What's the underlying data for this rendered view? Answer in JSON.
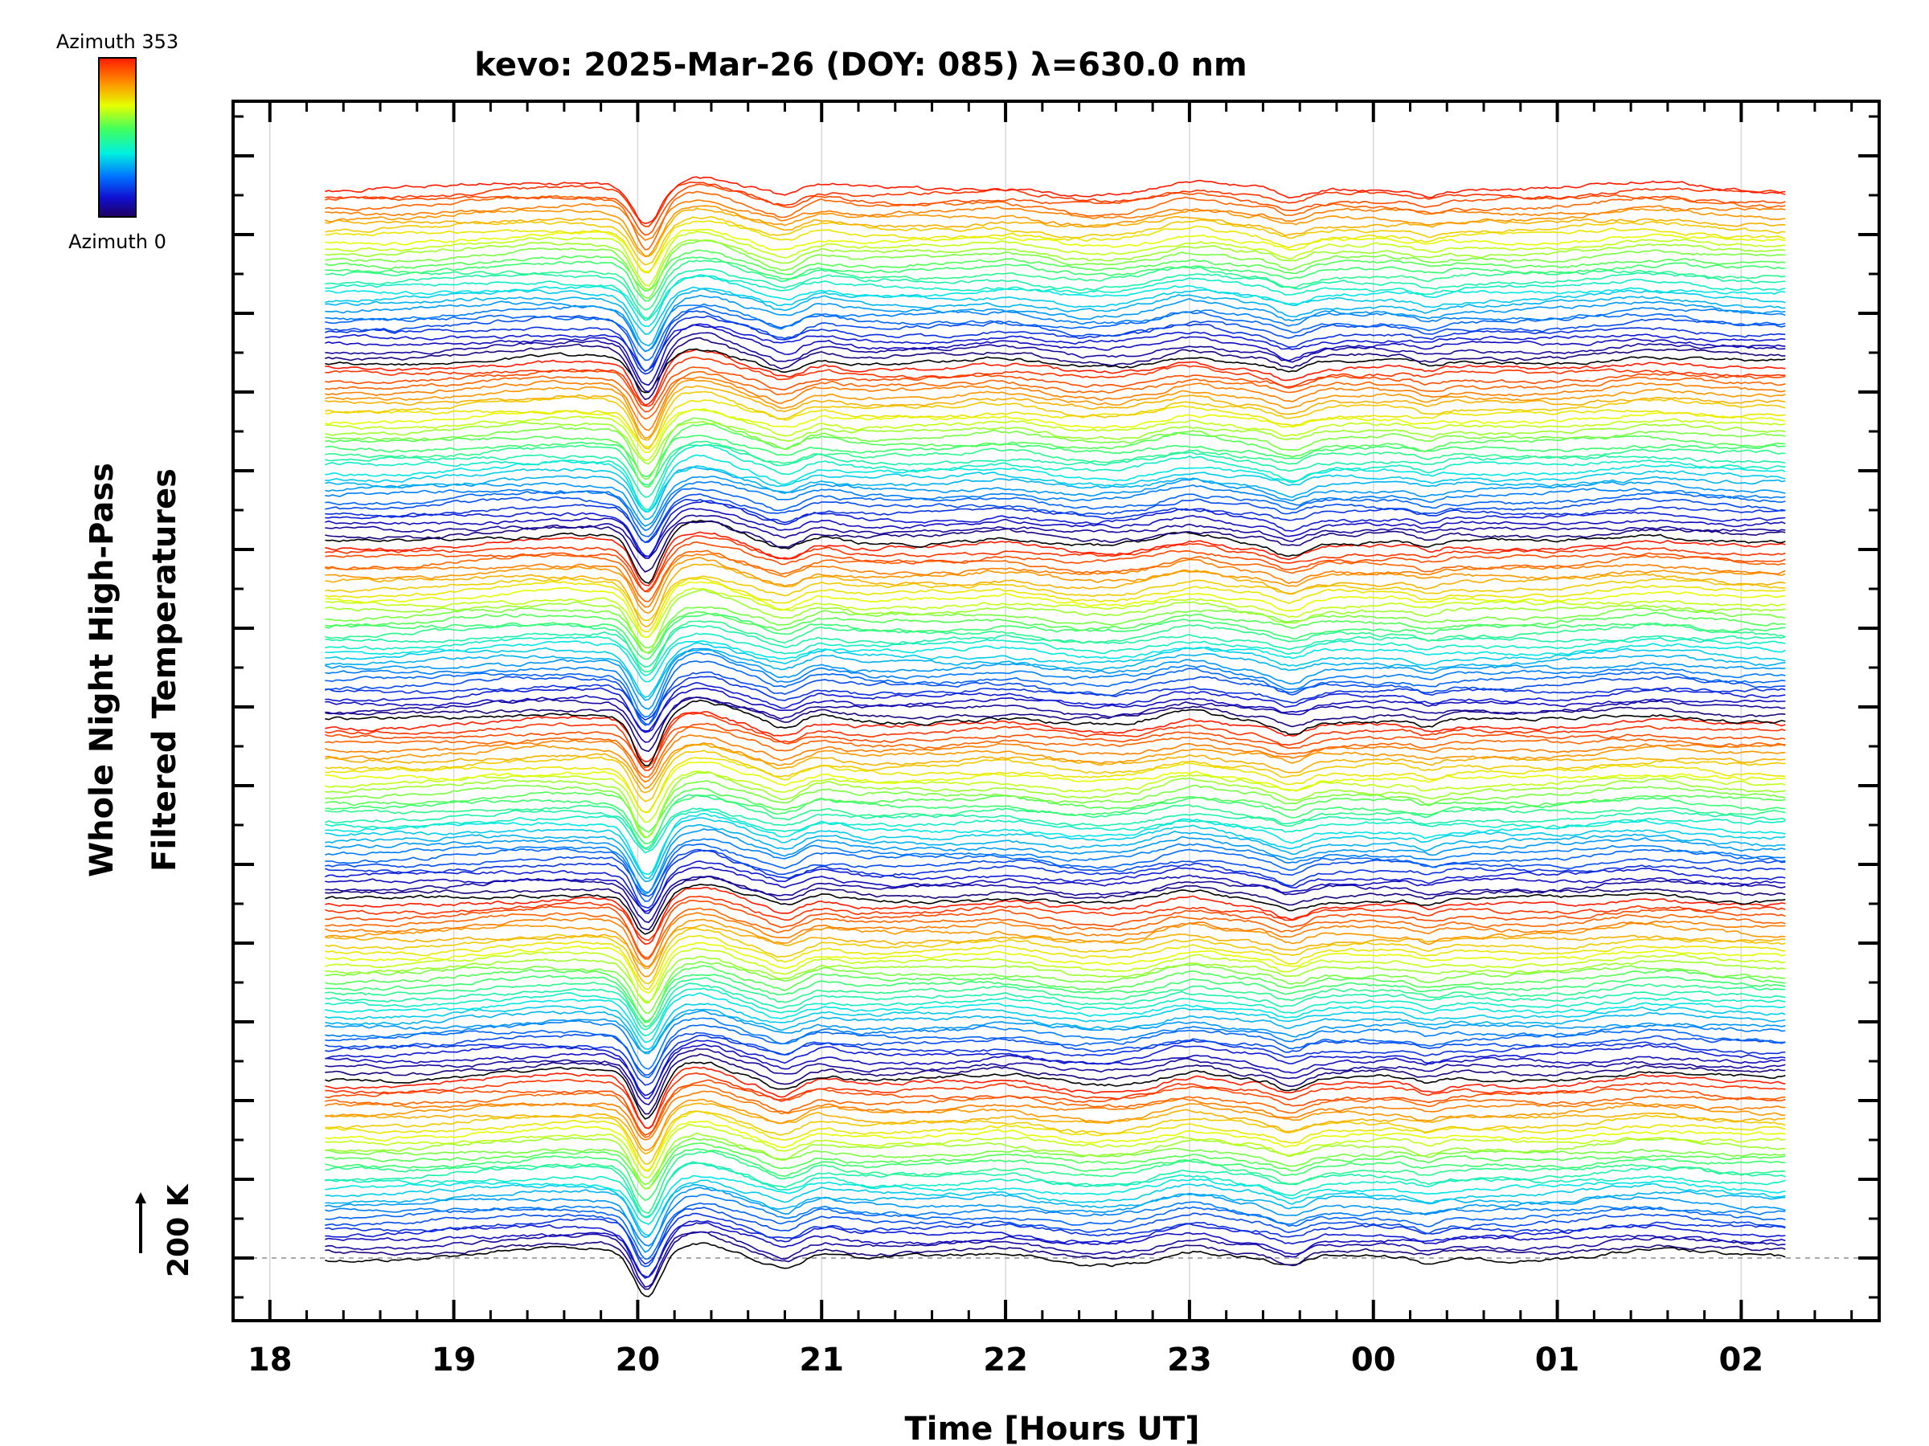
{
  "chart_data": {
    "type": "line",
    "title": "kevo: 2025-Mar-26 (DOY: 085) λ=630.0 nm",
    "xlabel": "Time [Hours UT]",
    "ylabel_line1": "Whole Night High-Pass",
    "ylabel_line2": "Filtered Temperatures",
    "x_unit": "hours UT since 18:00",
    "xlim": [
      -0.2,
      8.75
    ],
    "x_ticks": [
      {
        "value": 0,
        "label": "18"
      },
      {
        "value": 1,
        "label": "19"
      },
      {
        "value": 2,
        "label": "20"
      },
      {
        "value": 3,
        "label": "21"
      },
      {
        "value": 4,
        "label": "22"
      },
      {
        "value": 5,
        "label": "23"
      },
      {
        "value": 6,
        "label": "00"
      },
      {
        "value": 7,
        "label": "01"
      },
      {
        "value": 8,
        "label": "02"
      }
    ],
    "data_x_range": [
      0.3,
      8.25
    ],
    "scale_bar_label": "200 K",
    "colorbar": {
      "top_label": "Azimuth 353",
      "bottom_label": "Azimuth 0",
      "colors": [
        "#ff0000",
        "#ff8000",
        "#ffff00",
        "#80ff00",
        "#00ff80",
        "#00ffff",
        "#0080ff",
        "#0000ff",
        "#1a0060"
      ]
    },
    "series_count": 186,
    "gridlines_vertical": true,
    "baseline_dashed": true,
    "features": [
      {
        "x": 2.05,
        "kind": "sharp dip"
      },
      {
        "x": 2.3,
        "kind": "peak"
      },
      {
        "x": 2.8,
        "kind": "dip"
      },
      {
        "x": 3.0,
        "kind": "bump"
      },
      {
        "x": 5.0,
        "kind": "peak"
      },
      {
        "x": 5.5,
        "kind": "dip"
      },
      {
        "x": 6.3,
        "kind": "dip"
      },
      {
        "x": 7.5,
        "kind": "peak"
      }
    ]
  }
}
